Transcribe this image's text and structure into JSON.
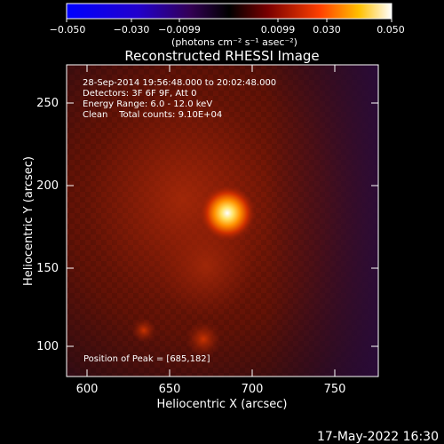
{
  "colorbar": {
    "tick_labels": [
      "−0.050",
      "−0.030",
      "−0.0099",
      "0.0099",
      "0.030",
      "0.050"
    ],
    "unit_label": "(photons cm⁻² s⁻¹ asec⁻²)"
  },
  "title": "Reconstructed RHESSI Image",
  "info": {
    "time_range": "28-Sep-2014 19:56:48.000 to 20:02:48.000",
    "detectors": "Detectors: 3F 6F 9F, Att 0",
    "energy": "Energy Range: 6.0 - 12.0 keV",
    "clean": "Clean    Total counts: 9.10E+04"
  },
  "peak_text": "Position of Peak = [685,182]",
  "axes": {
    "xlabel": "Heliocentric X (arcsec)",
    "ylabel": "Heliocentric Y (arcsec)",
    "xticks": [
      "600",
      "650",
      "700",
      "750"
    ],
    "yticks": [
      "100",
      "150",
      "200",
      "250"
    ]
  },
  "footer_date": "17-May-2022 16:30",
  "colors": {
    "colormap": "red-temperature",
    "background": "#000000"
  }
}
